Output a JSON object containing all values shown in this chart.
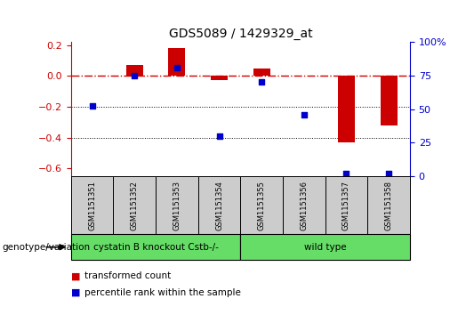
{
  "title": "GDS5089 / 1429329_at",
  "samples": [
    "GSM1151351",
    "GSM1151352",
    "GSM1151353",
    "GSM1151354",
    "GSM1151355",
    "GSM1151356",
    "GSM1151357",
    "GSM1151358"
  ],
  "red_values": [
    0.0,
    0.07,
    0.18,
    -0.03,
    0.05,
    0.0,
    -0.43,
    -0.32
  ],
  "blue_percentile": [
    52,
    75,
    81,
    30,
    70,
    46,
    2,
    2
  ],
  "group1_count": 4,
  "group2_count": 4,
  "group1_label": "cystatin B knockout Cstb-/-",
  "group2_label": "wild type",
  "genotype_label": "genotype/variation",
  "legend1": "transformed count",
  "legend2": "percentile rank within the sample",
  "ylim_left": [
    -0.65,
    0.22
  ],
  "ylim_right": [
    0,
    100
  ],
  "yticks_left": [
    0.2,
    0.0,
    -0.2,
    -0.4,
    -0.6
  ],
  "yticks_right": [
    100,
    75,
    50,
    25,
    0
  ],
  "red_color": "#cc0000",
  "blue_color": "#0000cc",
  "green_color": "#66dd66",
  "gray_color": "#cccccc"
}
